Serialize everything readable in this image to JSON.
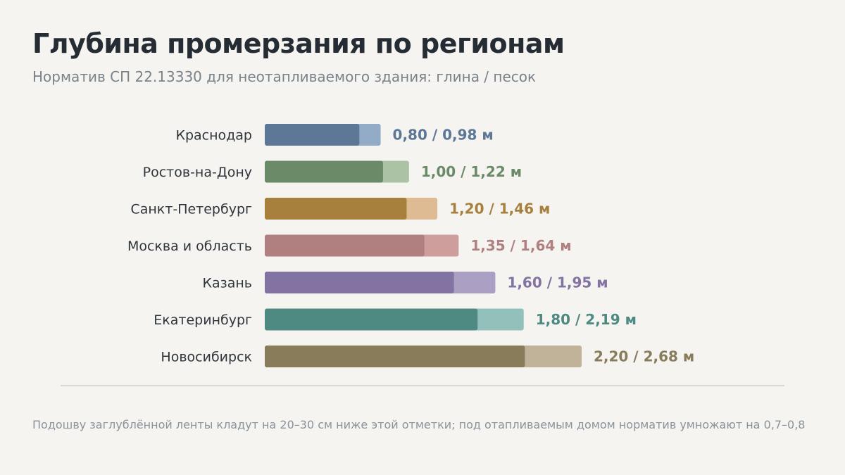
{
  "header": {
    "title": "Глубина промерзания по регионам",
    "subtitle": "Норматив СП 22.13330 для неотапливаемого здания: глина / песок"
  },
  "chart_data": {
    "type": "bar",
    "orientation": "horizontal",
    "unit": "м",
    "categories": [
      "Краснодар",
      "Ростов-на-Дону",
      "Санкт-Петербург",
      "Москва и область",
      "Казань",
      "Екатеринбург",
      "Новосибирск"
    ],
    "series": [
      {
        "values": [
          0.8,
          1.0,
          1.2,
          1.35,
          1.6,
          1.8,
          2.2
        ]
      },
      {
        "values": [
          0.98,
          1.22,
          1.46,
          1.64,
          1.95,
          2.19,
          2.68
        ]
      }
    ],
    "value_labels": [
      "0,80 / 0,98 м",
      "1,00 / 1,22 м",
      "1,20 / 1,46 м",
      "1,35 / 1,64 м",
      "1,60 / 1,95 м",
      "1,80 / 2,19 м",
      "2,20 / 2,68 м"
    ],
    "colors": {
      "dark": [
        "#5c7896",
        "#6a8a68",
        "#a8803e",
        "#b08080",
        "#8373a3",
        "#4f8a82",
        "#887c5a"
      ],
      "light": [
        "#92abc7",
        "#abc2a5",
        "#debb92",
        "#cd9e9c",
        "#ac9fc4",
        "#92c0bb",
        "#c0b39a"
      ]
    },
    "xlim": [
      0,
      2.68
    ],
    "grid": false
  },
  "footnote": "Подошву заглублённой ленты кладут на 20–30 см ниже этой отметки; под отапливаемым домом норматив умножают на 0,7–0,8"
}
